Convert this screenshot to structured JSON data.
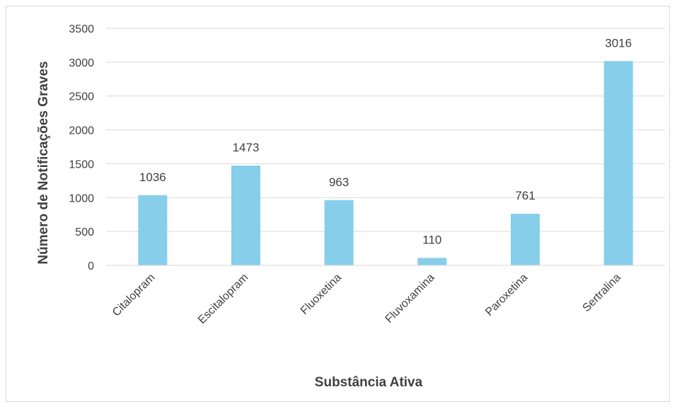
{
  "chart_data": {
    "type": "bar",
    "categories": [
      "Citalopram",
      "Escitalopram",
      "Fluoxetina",
      "Fluvoxamina",
      "Paroxetina",
      "Sertralina"
    ],
    "series": [
      {
        "values": [
          1036,
          1473,
          963,
          110,
          761,
          3016
        ]
      }
    ],
    "data_labels": [
      "1036",
      "1473",
      "963",
      "110",
      "761",
      "3016"
    ],
    "y_ticks": [
      "0",
      "500",
      "1000",
      "1500",
      "2000",
      "2500",
      "3000",
      "3500"
    ],
    "xlabel": "Substância Ativa",
    "ylabel": "Número de Notificações Graves",
    "ylim": [
      0,
      3500
    ],
    "grid": true,
    "bar_color": "#87ceeb",
    "grid_color": "#d9d9d9"
  }
}
